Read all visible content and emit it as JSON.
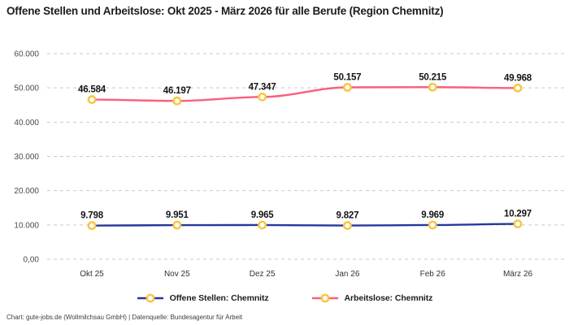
{
  "title": "Offene Stellen und Arbeitslose: Okt 2025 - März 2026 für alle Berufe (Region Chemnitz)",
  "footer": "Chart: gute-jobs.de (Wollmilchsau GmbH) | Datenquelle: Bundesagentur für Arbeit",
  "colors": {
    "grid": "#c9c9c9",
    "marker_stroke": "#fdc437",
    "marker_fill": "#ffffff",
    "series_open_positions": "#26399b",
    "series_unemployed": "#f9607a"
  },
  "chart_data": {
    "type": "line",
    "categories": [
      "Okt 25",
      "Nov 25",
      "Dez 25",
      "Jan 26",
      "Feb 26",
      "März 26"
    ],
    "series": [
      {
        "name": "Offene Stellen: Chemnitz",
        "color": "#26399b",
        "values": [
          9798,
          9951,
          9965,
          9827,
          9969,
          10297
        ],
        "labels": [
          "9.798",
          "9.951",
          "9.965",
          "9.827",
          "9.969",
          "10.297"
        ]
      },
      {
        "name": "Arbeitslose: Chemnitz",
        "color": "#f9607a",
        "values": [
          46584,
          46197,
          47347,
          50157,
          50215,
          49968
        ],
        "labels": [
          "46.584",
          "46.197",
          "47.347",
          "50.157",
          "50.215",
          "49.968"
        ]
      }
    ],
    "ylim": [
      0,
      60000
    ],
    "ytick_labels": [
      "0,00",
      "10.000",
      "20.000",
      "30.000",
      "40.000",
      "50.000",
      "60.000"
    ],
    "grid": "horizontal-dashed",
    "legend_position": "bottom",
    "marker": "open-circle"
  }
}
